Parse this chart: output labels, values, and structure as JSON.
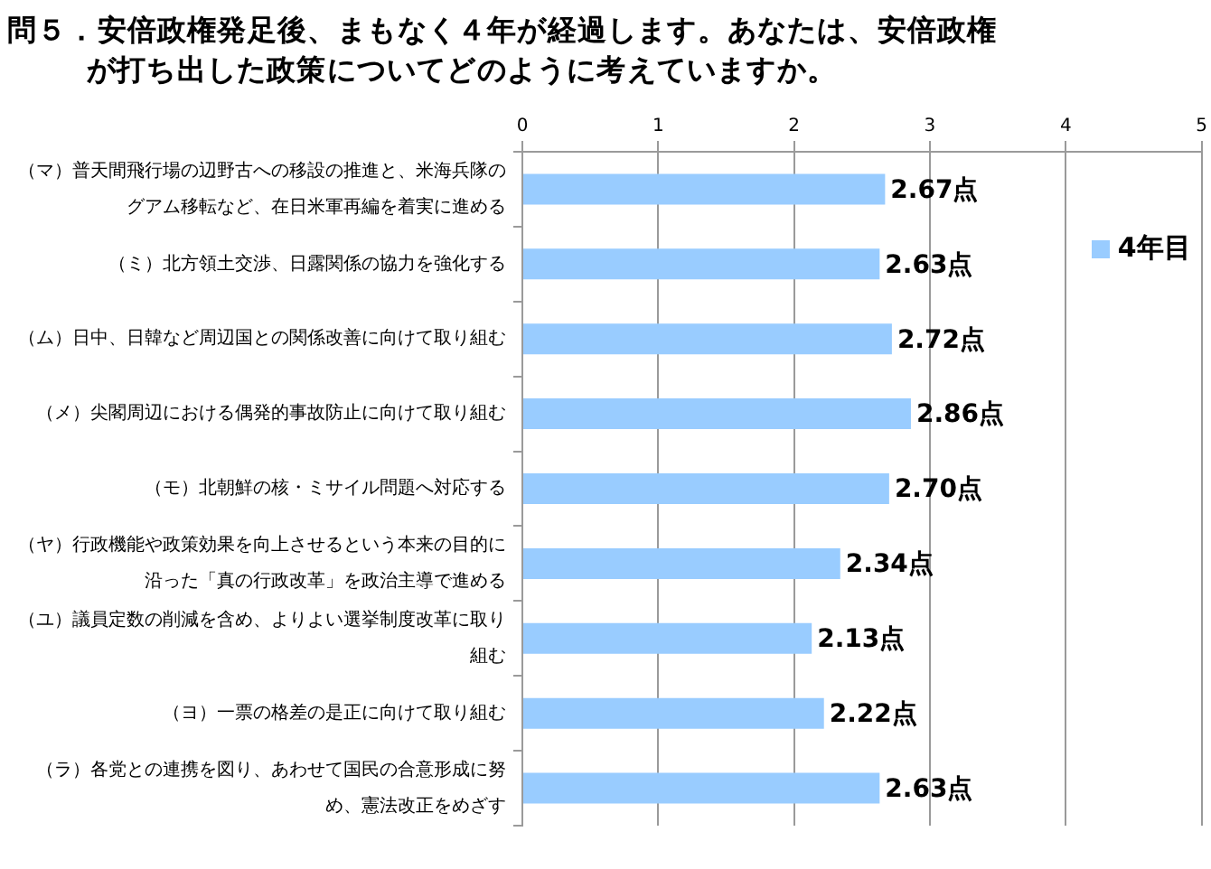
{
  "chart_data": {
    "type": "bar",
    "orientation": "horizontal",
    "title": "問５．安倍政権発足後、まもなく４年が経過します。あなたは、安倍政権が打ち出した政策についてどのように考えていますか。",
    "categories": [
      "（マ）普天間飛行場の辺野古への移設の推進と、米海兵隊のグアム移転など、在日米軍再編を着実に進める",
      "（ミ）北方領土交渉、日露関係の協力を強化する",
      "（ム）日中、日韓など周辺国との関係改善に向けて取り組む",
      "（メ）尖閣周辺における偶発的事故防止に向けて取り組む",
      "（モ）北朝鮮の核・ミサイル問題へ対応する",
      "（ヤ）行政機能や政策効果を向上させるという本来の目的に沿った「真の行政改革」を政治主導で進める",
      "（ユ）議員定数の削減を含め、よりよい選挙制度改革に取り組む",
      "（ヨ）一票の格差の是正に向けて取り組む",
      "（ラ）各党との連携を図り、あわせて国民の合意形成に努め、憲法改正をめざす"
    ],
    "series": [
      {
        "name": "4年目",
        "color": "#99ccff",
        "values": [
          2.67,
          2.63,
          2.72,
          2.86,
          2.7,
          2.34,
          2.13,
          2.22,
          2.63
        ],
        "value_labels": [
          "2.67点",
          "2.63点",
          "2.72点",
          "2.86点",
          "2.70点",
          "2.34点",
          "2.13点",
          "2.22点",
          "2.63点"
        ]
      }
    ],
    "xlim": [
      0,
      5
    ],
    "xticks": [
      0,
      1,
      2,
      3,
      4,
      5
    ],
    "grid": "x",
    "legend": "top right"
  }
}
